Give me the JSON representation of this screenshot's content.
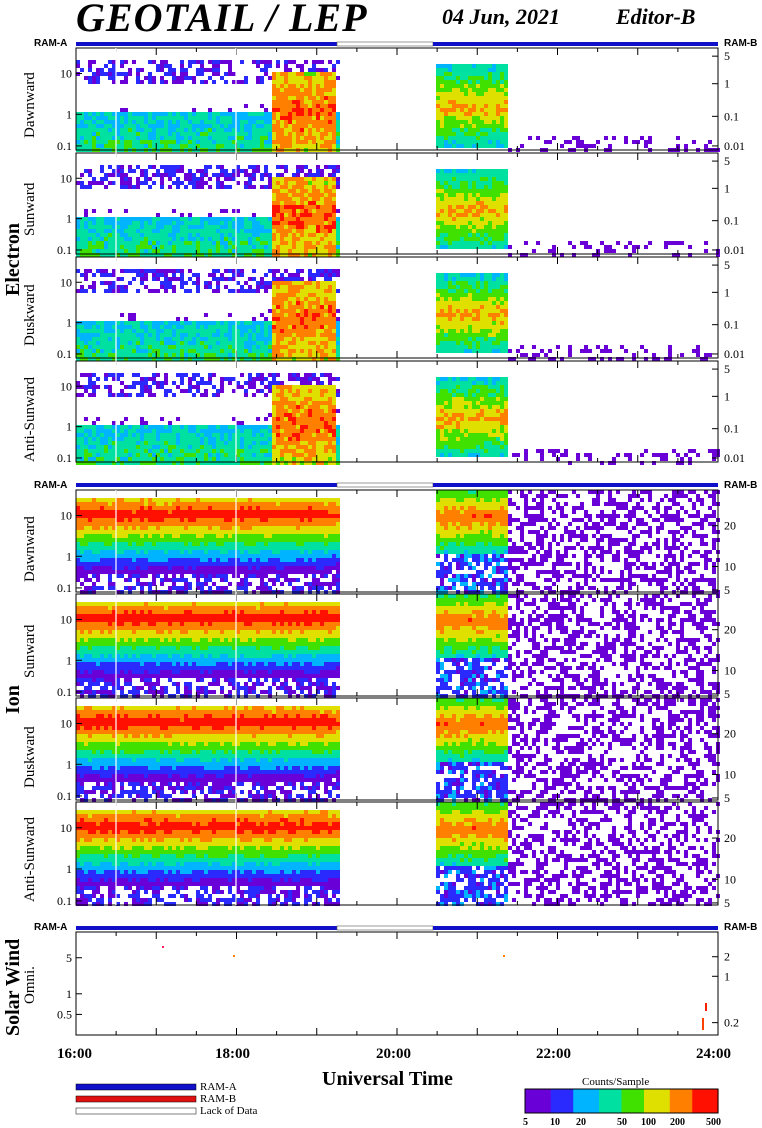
{
  "header": {
    "title": "GEOTAIL / LEP",
    "date": "04 Jun, 2021",
    "editor": "Editor-B"
  },
  "groups": {
    "electron": "Electron",
    "ion": "Ion",
    "solar_wind": "Solar Wind"
  },
  "ram_labels": {
    "ram_a": "RAM-A",
    "ram_b": "RAM-B"
  },
  "panels": {
    "electron": [
      "Dawnward",
      "Sunward",
      "Duskward",
      "Anti-Sunward"
    ],
    "ion": [
      "Dawnward",
      "Sunward",
      "Duskward",
      "Anti-Sunward"
    ],
    "solar_wind": [
      "Omni."
    ]
  },
  "axes": {
    "x_title": "Universal Time",
    "x_ticks": [
      "16:00",
      "18:00",
      "20:00",
      "22:00",
      "24:00"
    ],
    "electron_left_ticks": [
      "10",
      "1",
      "0.1"
    ],
    "electron_right_ticks": [
      "5",
      "1",
      "0.1",
      "0.01"
    ],
    "ion_left_ticks": [
      "10",
      "1",
      "0.1"
    ],
    "ion_right_ticks": [
      "20",
      "10",
      "5"
    ],
    "sw_left_ticks": [
      "5",
      "1",
      "0.5"
    ],
    "sw_right_ticks": [
      "2",
      "1",
      "0.2"
    ]
  },
  "legend": {
    "ram_a": "RAM-A",
    "ram_b": "RAM-B",
    "lack": "Lack of Data"
  },
  "colorbar": {
    "title": "Counts/Sample",
    "ticks": [
      "5",
      "10",
      "20",
      "50",
      "100",
      "200",
      "500"
    ],
    "colors": [
      "#6a00d8",
      "#2a2aff",
      "#00b4ff",
      "#00e0a0",
      "#40e000",
      "#e0e000",
      "#ff8000",
      "#ff1000"
    ]
  },
  "chart_data": {
    "type": "heatmap",
    "title": "GEOTAIL / LEP",
    "xlabel": "Universal Time",
    "x_range": [
      "16:00",
      "24:00"
    ],
    "data_gap": [
      "19:15",
      "20:30"
    ],
    "ram_a_intervals": [
      [
        "16:00",
        "19:15"
      ],
      [
        "20:30",
        "24:00"
      ]
    ],
    "lack_of_data_intervals": [
      [
        "19:15",
        "20:30"
      ]
    ],
    "electron_left_ticks": [
      "10",
      "1",
      "0.1"
    ],
    "electron_right_ticks": [
      "5",
      "1",
      "0.1",
      "0.01"
    ],
    "ion_left_ticks": [
      "10",
      "1",
      "0.1"
    ],
    "ion_right_ticks": [
      "20",
      "10",
      "5"
    ],
    "solar_wind_left_ticks": [
      "5",
      "1",
      "0.5"
    ],
    "solar_wind_right_ticks": [
      "2",
      "1",
      "0.2"
    ],
    "colorbar": {
      "label": "Counts/Sample",
      "range": [
        5,
        500
      ],
      "scale": "log"
    },
    "panels": [
      "Electron Dawnward",
      "Electron Sunward",
      "Electron Duskward",
      "Electron Anti-Sunward",
      "Ion Dawnward",
      "Ion Sunward",
      "Ion Duskward",
      "Ion Anti-Sunward",
      "Solar Wind Omni."
    ]
  }
}
